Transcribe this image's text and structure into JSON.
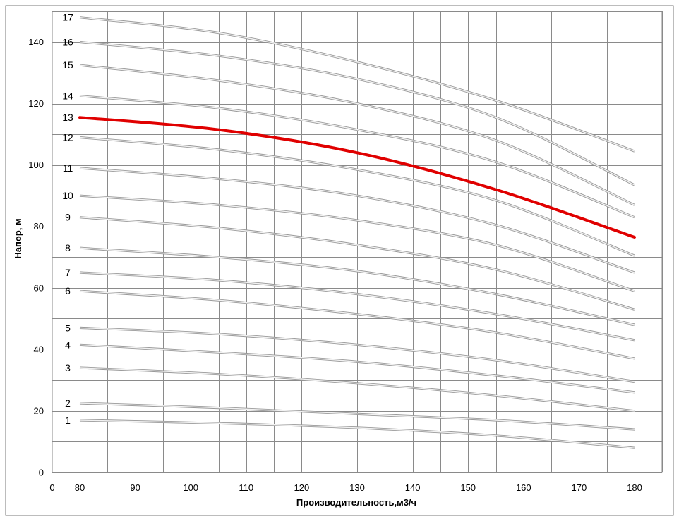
{
  "chart_data": {
    "type": "line",
    "title": "",
    "xlabel": "Производительность,м3/ч",
    "ylabel": "Напор, м",
    "xlim": [
      0,
      180
    ],
    "ylim": [
      0,
      150
    ],
    "x_ticks": [
      0,
      80,
      90,
      100,
      110,
      120,
      130,
      140,
      150,
      160,
      170,
      180
    ],
    "x_tick_labels": [
      "0",
      "80",
      "90",
      "100",
      "110",
      "120",
      "130",
      "140",
      "150",
      "160",
      "170",
      "180"
    ],
    "y_ticks": [
      0,
      20,
      40,
      60,
      80,
      100,
      120,
      140
    ],
    "y_tick_labels": [
      "0",
      "20",
      "40",
      "60",
      "80",
      "100",
      "120",
      "140"
    ],
    "grid": true,
    "x_break": "between 0 and 80",
    "highlight_color": "#e00000",
    "curve_color": "#b8b8b8",
    "x": [
      80,
      105,
      130,
      155,
      180
    ],
    "series": [
      {
        "name": "1",
        "values": [
          17,
          16,
          14.5,
          12,
          8
        ]
      },
      {
        "name": "2",
        "values": [
          22.5,
          21,
          19,
          17,
          14
        ]
      },
      {
        "name": "3",
        "values": [
          34,
          32,
          29,
          25,
          20
        ]
      },
      {
        "name": "4",
        "values": [
          41.5,
          39,
          36,
          31.5,
          26
        ]
      },
      {
        "name": "5",
        "values": [
          47,
          45,
          41.5,
          36.5,
          29.5
        ]
      },
      {
        "name": "6",
        "values": [
          59,
          56,
          51.5,
          45.5,
          37
        ]
      },
      {
        "name": "7",
        "values": [
          65,
          62.5,
          58,
          51.5,
          43
        ]
      },
      {
        "name": "8",
        "values": [
          73,
          70,
          65.5,
          58,
          48
        ]
      },
      {
        "name": "9",
        "values": [
          83,
          79.5,
          74,
          66,
          53
        ]
      },
      {
        "name": "10",
        "values": [
          90,
          87,
          82,
          74,
          59
        ]
      },
      {
        "name": "11",
        "values": [
          99,
          95.5,
          90,
          80.5,
          65
        ]
      },
      {
        "name": "12",
        "values": [
          109,
          105,
          98.5,
          88.5,
          70.5
        ]
      },
      {
        "name": "13",
        "values": [
          115.5,
          111.5,
          104,
          92,
          76.5
        ],
        "highlight": true
      },
      {
        "name": "14",
        "values": [
          122.5,
          118.5,
          111.5,
          101,
          83
        ]
      },
      {
        "name": "15",
        "values": [
          132.5,
          127.5,
          120,
          108,
          87
        ]
      },
      {
        "name": "16",
        "values": [
          140,
          135.5,
          128,
          115.5,
          93.5
        ]
      },
      {
        "name": "17",
        "values": [
          148,
          143,
          133.5,
          121,
          104.5
        ]
      }
    ]
  }
}
